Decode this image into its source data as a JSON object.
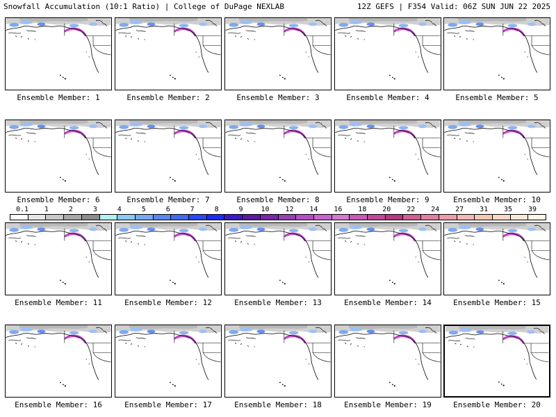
{
  "header": {
    "title_left": "Snowfall Accumulation (10:1 Ratio) | College of DuPage NEXLAB",
    "title_right": "12Z GEFS | F354 Valid: 06Z SUN JUN 22 2025"
  },
  "panel_label_prefix": "Ensemble Member: ",
  "members": [
    {
      "label": "Ensemble Member: 1",
      "selected": false
    },
    {
      "label": "Ensemble Member: 2",
      "selected": false
    },
    {
      "label": "Ensemble Member: 3",
      "selected": false
    },
    {
      "label": "Ensemble Member: 4",
      "selected": false
    },
    {
      "label": "Ensemble Member: 5",
      "selected": false
    },
    {
      "label": "Ensemble Member: 6",
      "selected": false
    },
    {
      "label": "Ensemble Member: 7",
      "selected": false
    },
    {
      "label": "Ensemble Member: 8",
      "selected": false
    },
    {
      "label": "Ensemble Member: 9",
      "selected": false
    },
    {
      "label": "Ensemble Member: 10",
      "selected": false
    },
    {
      "label": "Ensemble Member: 11",
      "selected": false
    },
    {
      "label": "Ensemble Member: 12",
      "selected": false
    },
    {
      "label": "Ensemble Member: 13",
      "selected": false
    },
    {
      "label": "Ensemble Member: 14",
      "selected": false
    },
    {
      "label": "Ensemble Member: 15",
      "selected": false
    },
    {
      "label": "Ensemble Member: 16",
      "selected": false
    },
    {
      "label": "Ensemble Member: 17",
      "selected": false
    },
    {
      "label": "Ensemble Member: 18",
      "selected": false
    },
    {
      "label": "Ensemble Member: 19",
      "selected": false
    },
    {
      "label": "Ensemble Member: 20",
      "selected": true
    }
  ],
  "colorbar": {
    "labels": [
      "0.1",
      "1",
      "2",
      "3",
      "4",
      "5",
      "6",
      "7",
      "8",
      "9",
      "10",
      "12",
      "14",
      "16",
      "18",
      "20",
      "22",
      "24",
      "27",
      "31",
      "35",
      "39"
    ],
    "colors": [
      "#ffffff",
      "#e6e6e6",
      "#c8c8c8",
      "#a8a8a8",
      "#8c8c8c",
      "#b4f0f0",
      "#8cc8f0",
      "#78a8f0",
      "#5a87ee",
      "#4468ee",
      "#2c48f0",
      "#1c2cf5",
      "#3c1cc8",
      "#5a1ca0",
      "#7828a8",
      "#9640b4",
      "#b450c4",
      "#c864d0",
      "#d27ad0",
      "#c85ab4",
      "#c04898",
      "#b83880",
      "#d06090",
      "#e080a0",
      "#ec9cac",
      "#f4b8b8",
      "#f4c8b4",
      "#f8d8c4",
      "#fce8d8",
      "#fff4e8"
    ]
  }
}
